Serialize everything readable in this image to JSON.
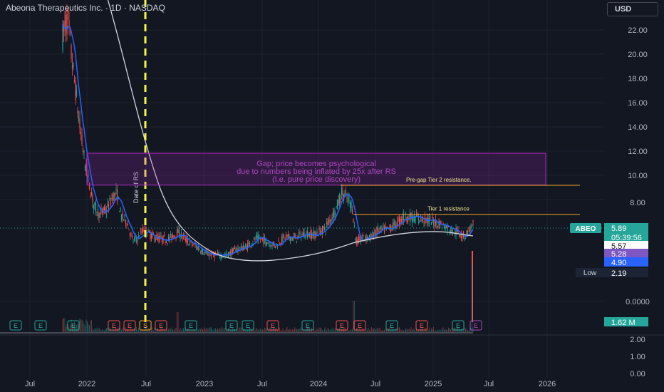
{
  "header": {
    "title": "Abeona Therapeutics Inc. · 1D · NASDAQ",
    "currency": "USD"
  },
  "colors": {
    "background": "#131722",
    "grid": "#1e222d",
    "text": "#b2b5be",
    "up": "#26a69a",
    "down": "#ef5350",
    "ma_fast": "#2962ff",
    "ma_slow": "#d1d4dc",
    "annotation_purple": "#9c27b0",
    "resistance": "#f5a623",
    "date_line": "#f5f542"
  },
  "chart_data": {
    "type": "candlestick",
    "symbol": "ABEO",
    "x_ticks": [
      "Jul",
      "2022",
      "Jul",
      "2023",
      "Jul",
      "2024",
      "Jul",
      "2025",
      "Jul",
      "2026"
    ],
    "price_axis": {
      "ticks": [
        "22.00",
        "20.00",
        "18.00",
        "16.00",
        "14.00",
        "12.00",
        "10.00",
        "8.00",
        "0.0000"
      ],
      "ylim": [
        2,
        23
      ]
    },
    "volume_axis": {
      "ticks": [
        "2.00",
        "1.00",
        "0.00"
      ]
    },
    "price_labels": [
      {
        "label": "ABEO",
        "value": "5.89",
        "color": "#26a69a"
      },
      {
        "label": "",
        "value": "05:39:56",
        "color": "#26a69a"
      },
      {
        "label": "",
        "value": "5.57",
        "color": "#ffffff"
      },
      {
        "label": "",
        "value": "5.28",
        "color": "#7e57c2"
      },
      {
        "label": "",
        "value": "4.90",
        "color": "#2962ff"
      },
      {
        "label": "Low",
        "value": "2.19",
        "color": "#1c2436"
      },
      {
        "label": "",
        "value": "1.62 M",
        "color": "#26a69a"
      }
    ],
    "annotations": {
      "gap_box_text": "Gap; price becomes psychological\ndue to numbers being inflated by 25x after RS\n(I.e. pure price discovery)",
      "tier2_label": "Pre-gap Tier 2 resistance.",
      "tier2_price": 9.0,
      "tier1_label": "Tier 1 resistance",
      "tier1_price": 6.9,
      "date_line_label": "Date of RS",
      "gap_top": 12.0,
      "gap_bottom": 9.2
    },
    "events": [
      "E",
      "E",
      "E",
      "E",
      "E",
      "S",
      "E",
      "E",
      "E",
      "E",
      "E",
      "E",
      "E",
      "E",
      "E",
      "E",
      "E",
      "E",
      "E"
    ]
  }
}
